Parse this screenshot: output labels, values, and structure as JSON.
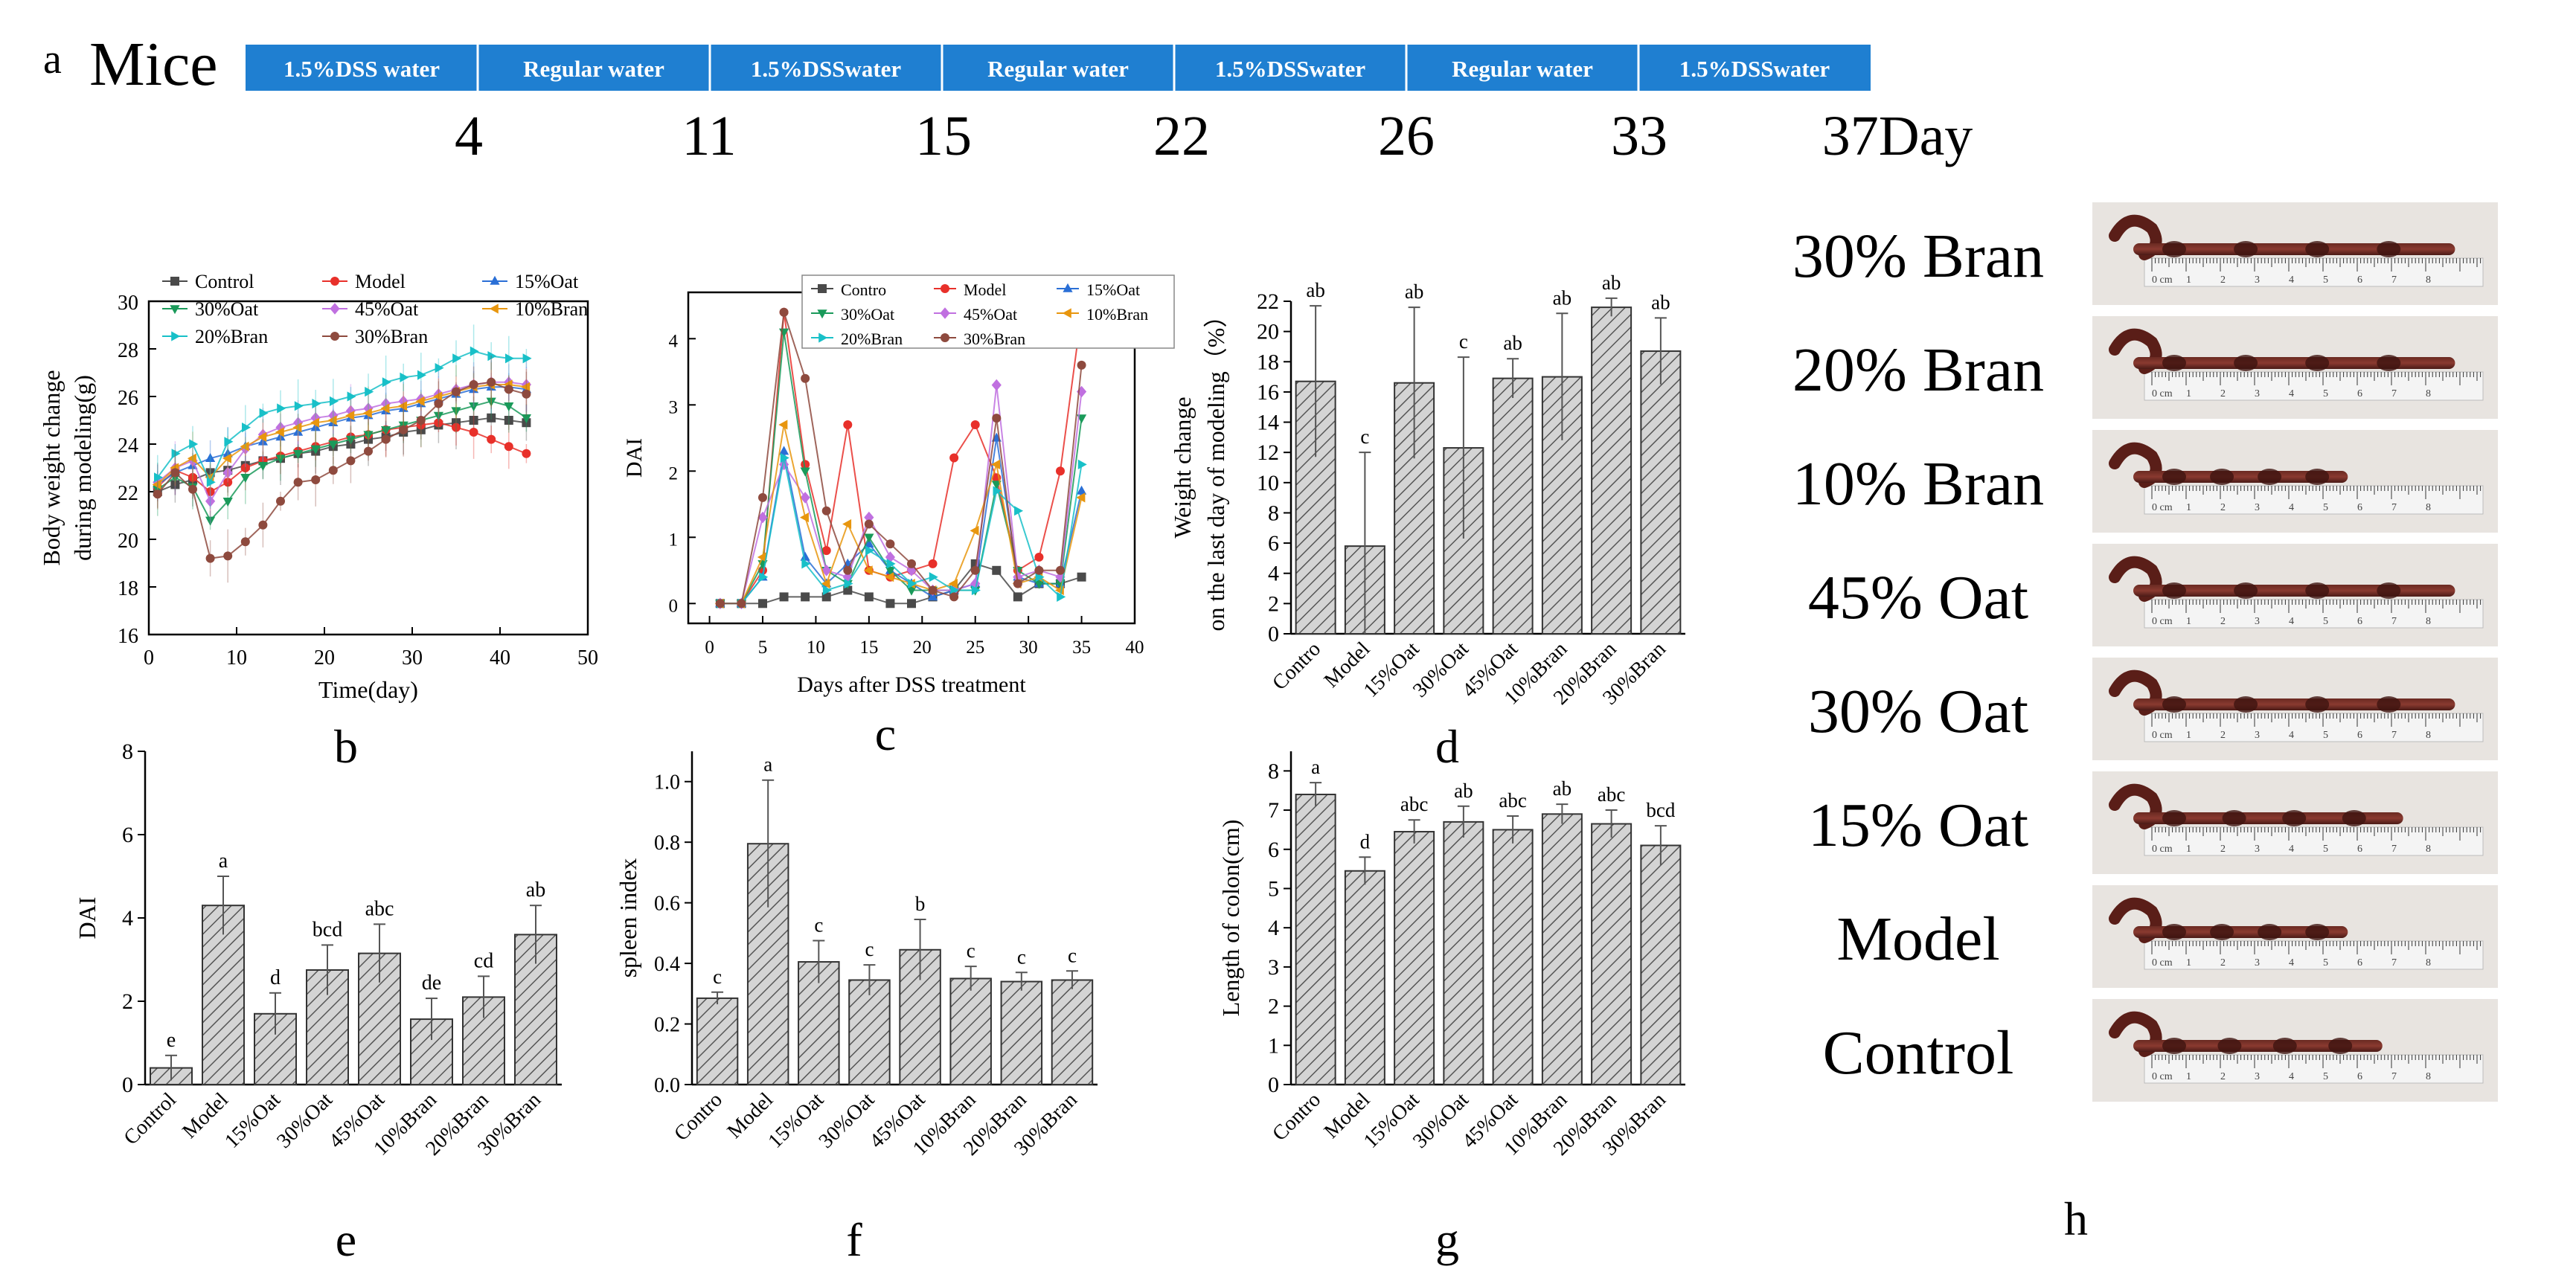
{
  "timeline": {
    "panel_label": "a",
    "subject": "Mice",
    "segments": [
      "1.5%DSS water",
      "Regular water",
      "1.5%DSSwater",
      "Regular water",
      "1.5%DSSwater",
      "Regular water",
      "1.5%DSSwater"
    ],
    "days": [
      "4",
      "11",
      "15",
      "22",
      "26",
      "33",
      "37Day"
    ],
    "bar_color": "#1f7fd1"
  },
  "chart_data": [
    {
      "id": "b",
      "type": "line",
      "panel_label": "b",
      "xlabel": "Time(day)",
      "ylabel": "Body weight change during modeling(g)",
      "ylabel_lines": [
        "Body weight change",
        "during modeling(g)"
      ],
      "xlim": [
        0,
        50
      ],
      "ylim": [
        16,
        30
      ],
      "xticks": [
        0,
        10,
        20,
        30,
        40,
        50
      ],
      "yticks": [
        16,
        18,
        20,
        22,
        24,
        26,
        28,
        30
      ],
      "x": [
        1,
        3,
        5,
        7,
        9,
        11,
        13,
        15,
        17,
        19,
        21,
        23,
        25,
        27,
        29,
        31,
        33,
        35,
        37,
        39,
        41,
        43
      ],
      "series": [
        {
          "name": "Control",
          "color": "#4a4a4a",
          "marker": "square",
          "values": [
            22.0,
            22.3,
            22.5,
            22.8,
            22.9,
            23.1,
            23.3,
            23.4,
            23.6,
            23.7,
            23.9,
            24.0,
            24.2,
            24.3,
            24.5,
            24.6,
            24.8,
            24.9,
            25.0,
            25.1,
            25.0,
            24.9
          ]
        },
        {
          "name": "Model",
          "color": "#e8302a",
          "marker": "circle",
          "values": [
            22.2,
            22.9,
            22.6,
            22.0,
            22.4,
            23.0,
            23.3,
            23.5,
            23.7,
            23.9,
            24.1,
            24.3,
            24.4,
            24.6,
            24.7,
            24.8,
            24.9,
            24.7,
            24.5,
            24.2,
            23.9,
            23.6
          ]
        },
        {
          "name": "15%Oat",
          "color": "#2a6fd6",
          "marker": "triangle-up",
          "values": [
            22.3,
            22.8,
            23.1,
            23.4,
            23.6,
            23.9,
            24.1,
            24.3,
            24.5,
            24.7,
            24.9,
            25.1,
            25.2,
            25.4,
            25.5,
            25.7,
            25.9,
            26.1,
            26.3,
            26.4,
            26.4,
            26.3
          ]
        },
        {
          "name": "30%Oat",
          "color": "#1a9a5a",
          "marker": "triangle-down",
          "values": [
            22.1,
            22.6,
            22.2,
            20.8,
            21.6,
            22.6,
            23.1,
            23.4,
            23.6,
            23.8,
            24.0,
            24.2,
            24.4,
            24.6,
            24.8,
            25.0,
            25.2,
            25.4,
            25.6,
            25.8,
            25.6,
            25.1
          ]
        },
        {
          "name": "45%Oat",
          "color": "#c070e0",
          "marker": "diamond",
          "values": [
            22.4,
            23.0,
            23.3,
            21.6,
            22.8,
            23.8,
            24.4,
            24.7,
            24.9,
            25.1,
            25.2,
            25.4,
            25.5,
            25.7,
            25.8,
            25.9,
            26.1,
            26.3,
            26.5,
            26.6,
            26.6,
            26.5
          ]
        },
        {
          "name": "10%Bran",
          "color": "#e8960e",
          "marker": "triangle-left",
          "values": [
            22.3,
            23.0,
            23.4,
            22.6,
            23.4,
            23.9,
            24.3,
            24.5,
            24.7,
            24.9,
            25.0,
            25.2,
            25.3,
            25.5,
            25.6,
            25.8,
            26.0,
            26.2,
            26.4,
            26.5,
            26.5,
            26.4
          ]
        },
        {
          "name": "20%Bran",
          "color": "#18c0c8",
          "marker": "triangle-right",
          "values": [
            22.6,
            23.6,
            24.0,
            22.4,
            24.1,
            24.7,
            25.3,
            25.5,
            25.6,
            25.7,
            25.8,
            26.0,
            26.2,
            26.6,
            26.8,
            26.9,
            27.2,
            27.6,
            27.9,
            27.7,
            27.6,
            27.6
          ]
        },
        {
          "name": "30%Bran",
          "color": "#8e4a3e",
          "marker": "circle",
          "values": [
            21.9,
            22.8,
            22.1,
            19.2,
            19.3,
            19.9,
            20.6,
            21.6,
            22.4,
            22.5,
            22.9,
            23.3,
            23.7,
            24.2,
            24.6,
            25.0,
            25.7,
            26.2,
            26.5,
            26.6,
            26.3,
            26.1
          ]
        }
      ]
    },
    {
      "id": "c",
      "type": "line",
      "panel_label": "c",
      "xlabel": "Days after DSS treatment",
      "ylabel": "DAI",
      "xlim": [
        -2,
        40
      ],
      "ylim": [
        -0.3,
        4.7
      ],
      "xticks": [
        0,
        5,
        10,
        15,
        20,
        25,
        30,
        35,
        40
      ],
      "yticks": [
        0,
        1,
        2,
        3,
        4
      ],
      "x": [
        1,
        3,
        5,
        7,
        9,
        11,
        13,
        15,
        17,
        19,
        21,
        23,
        25,
        27,
        29,
        31,
        33,
        35
      ],
      "series": [
        {
          "name": "Contro",
          "color": "#4a4a4a",
          "marker": "square",
          "values": [
            0,
            0,
            0,
            0.1,
            0.1,
            0.1,
            0.2,
            0.1,
            0,
            0,
            0.1,
            0.2,
            0.6,
            0.5,
            0.1,
            0.3,
            0.3,
            0.4
          ]
        },
        {
          "name": "Model",
          "color": "#e8302a",
          "marker": "circle",
          "values": [
            0,
            0,
            0.5,
            4.4,
            2.1,
            0.8,
            2.7,
            0.5,
            0.4,
            0.5,
            0.6,
            2.2,
            2.7,
            1.9,
            0.5,
            0.7,
            2.0,
            4.4
          ]
        },
        {
          "name": "15%Oat",
          "color": "#2a6fd6",
          "marker": "triangle-up",
          "values": [
            0,
            0,
            0.4,
            2.3,
            0.7,
            0.3,
            0.6,
            0.9,
            0.5,
            0.3,
            0.1,
            0.2,
            0.3,
            2.5,
            0.4,
            0.3,
            0.3,
            1.7
          ]
        },
        {
          "name": "30%Oat",
          "color": "#1a9a5a",
          "marker": "triangle-down",
          "values": [
            0,
            0,
            0.6,
            4.1,
            2.0,
            0.5,
            0.3,
            1.0,
            0.5,
            0.2,
            0.2,
            0.2,
            0.2,
            1.8,
            0.5,
            0.3,
            0.3,
            2.8
          ]
        },
        {
          "name": "45%Oat",
          "color": "#c070e0",
          "marker": "diamond",
          "values": [
            0,
            0,
            1.3,
            2.1,
            1.6,
            0.5,
            0.4,
            1.3,
            0.7,
            0.5,
            0.2,
            0.2,
            0.3,
            3.3,
            0.4,
            0.5,
            0.4,
            3.2
          ]
        },
        {
          "name": "10%Bran",
          "color": "#e8960e",
          "marker": "triangle-left",
          "values": [
            0,
            0,
            0.7,
            2.7,
            1.3,
            0.3,
            1.2,
            0.5,
            0.4,
            0.3,
            0.2,
            0.3,
            1.1,
            2.1,
            0.3,
            0.4,
            0.2,
            1.6
          ]
        },
        {
          "name": "20%Bran",
          "color": "#18c0c8",
          "marker": "triangle-right",
          "values": [
            0,
            0,
            0.4,
            2.2,
            0.6,
            0.2,
            0.3,
            0.8,
            0.6,
            0.3,
            0.4,
            0.2,
            0.2,
            1.7,
            1.4,
            0.4,
            0.1,
            2.1
          ]
        },
        {
          "name": "30%Bran",
          "color": "#8e4a3e",
          "marker": "circle",
          "values": [
            0,
            0,
            1.6,
            4.4,
            3.4,
            1.4,
            0.5,
            1.2,
            0.9,
            0.6,
            0.2,
            0.1,
            0.5,
            2.8,
            0.3,
            0.5,
            0.5,
            3.6
          ]
        }
      ]
    },
    {
      "id": "d",
      "type": "bar",
      "panel_label": "d",
      "categories": [
        "Contro",
        "Model",
        "15%Oat",
        "30%Oat",
        "45%Oat",
        "10%Bran",
        "20%Bran",
        "30%Bran"
      ],
      "values": [
        16.7,
        5.8,
        16.6,
        12.3,
        16.9,
        17.0,
        21.6,
        18.7
      ],
      "errors": [
        5.0,
        6.2,
        5.0,
        6.0,
        1.3,
        4.2,
        0.6,
        2.2
      ],
      "letters": [
        "ab",
        "c",
        "ab",
        "c",
        "ab",
        "ab",
        "ab",
        "ab"
      ],
      "xlabel": "",
      "ylabel": "Weight change on the last day of modeling（%）",
      "ylabel_lines": [
        "Weight change",
        "on the last day of modeling（%）"
      ],
      "ylim": [
        0,
        22
      ],
      "yticks": [
        0,
        2,
        4,
        6,
        8,
        10,
        12,
        14,
        16,
        18,
        20,
        22
      ]
    },
    {
      "id": "e",
      "type": "bar",
      "panel_label": "e",
      "categories": [
        "Control",
        "Model",
        "15%Oat",
        "30%Oat",
        "45%Oat",
        "10%Bran",
        "20%Bran",
        "30%Bran"
      ],
      "values": [
        0.4,
        4.3,
        1.7,
        2.75,
        3.15,
        1.57,
        2.1,
        3.6
      ],
      "errors": [
        0.3,
        0.7,
        0.5,
        0.6,
        0.7,
        0.5,
        0.5,
        0.7
      ],
      "letters": [
        "e",
        "a",
        "d",
        "bcd",
        "abc",
        "de",
        "cd",
        "ab"
      ],
      "xlabel": "",
      "ylabel": "DAI",
      "ylim": [
        0,
        8
      ],
      "yticks": [
        0,
        2,
        4,
        6,
        8
      ]
    },
    {
      "id": "f",
      "type": "bar",
      "panel_label": "f",
      "categories": [
        "Contro",
        "Model",
        "15%Oat",
        "30%Oat",
        "45%Oat",
        "10%Bran",
        "20%Bran",
        "30%Bran"
      ],
      "values": [
        0.285,
        0.795,
        0.405,
        0.345,
        0.445,
        0.35,
        0.34,
        0.345
      ],
      "errors": [
        0.02,
        0.21,
        0.07,
        0.05,
        0.1,
        0.04,
        0.03,
        0.03
      ],
      "letters": [
        "c",
        "a",
        "c",
        "c",
        "b",
        "c",
        "c",
        "c"
      ],
      "xlabel": "",
      "ylabel": "spleen index",
      "ylim": [
        0,
        1.1
      ],
      "yticks": [
        0.0,
        0.2,
        0.4,
        0.6,
        0.8,
        1.0
      ]
    },
    {
      "id": "g",
      "type": "bar",
      "panel_label": "g",
      "categories": [
        "Contro",
        "Model",
        "15%Oat",
        "30%Oat",
        "45%Oat",
        "10%Bran",
        "20%Bran",
        "30%Bran"
      ],
      "values": [
        7.4,
        5.45,
        6.45,
        6.7,
        6.5,
        6.9,
        6.65,
        6.1
      ],
      "errors": [
        0.3,
        0.35,
        0.3,
        0.4,
        0.35,
        0.25,
        0.35,
        0.5
      ],
      "letters": [
        "a",
        "d",
        "abc",
        "ab",
        "abc",
        "ab",
        "abc",
        "bcd"
      ],
      "xlabel": "",
      "ylabel": "Length of colon(cm)",
      "ylim": [
        0,
        8.5
      ],
      "yticks": [
        0,
        1,
        2,
        3,
        4,
        5,
        6,
        7,
        8
      ]
    }
  ],
  "photos": {
    "panel_label": "h",
    "labels": [
      "30% Bran",
      "20% Bran",
      "10% Bran",
      "45% Oat",
      "30% Oat",
      "15% Oat",
      "Model",
      "Control"
    ],
    "ruler_text": "0 cm"
  }
}
